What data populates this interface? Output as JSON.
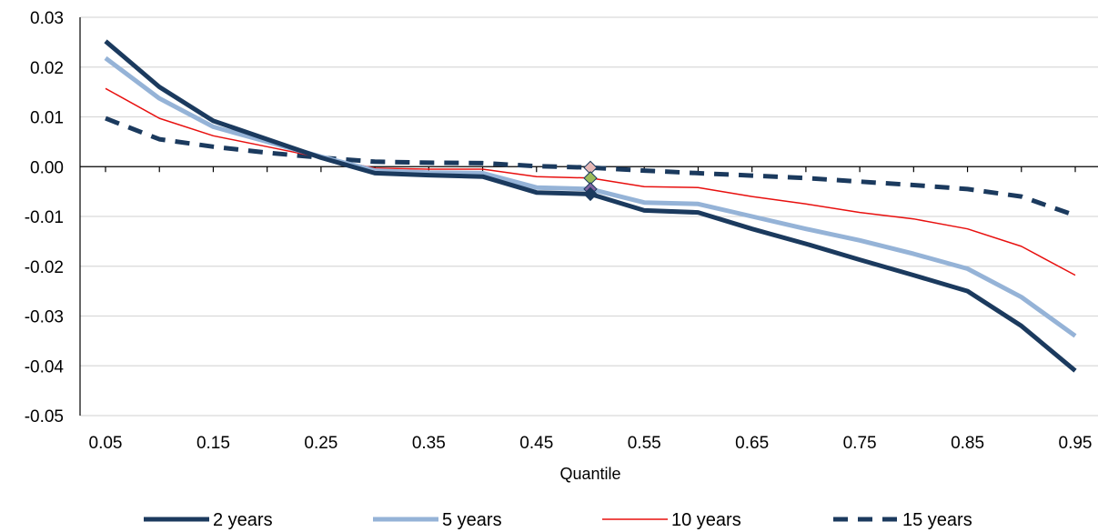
{
  "chart_data": {
    "type": "line",
    "title": "",
    "xlabel": "Quantile",
    "ylabel": "",
    "x": [
      0.05,
      0.1,
      0.15,
      0.2,
      0.25,
      0.3,
      0.35,
      0.4,
      0.45,
      0.5,
      0.55,
      0.6,
      0.65,
      0.7,
      0.75,
      0.8,
      0.85,
      0.9,
      0.95
    ],
    "xlim": [
      0.05,
      0.95
    ],
    "ylim": [
      -0.05,
      0.03
    ],
    "x_ticks": [
      "0.05",
      "0.15",
      "0.25",
      "0.35",
      "0.45",
      "0.55",
      "0.65",
      "0.75",
      "0.85",
      "0.95"
    ],
    "y_ticks": [
      "0.03",
      "0.02",
      "0.01",
      "0.00",
      "-0.01",
      "-0.02",
      "-0.03",
      "-0.04",
      "-0.05"
    ],
    "grid": "horizontal",
    "legend_position": "bottom",
    "series": [
      {
        "name": "2 years",
        "color": "#1b3a5e",
        "style": "solid-thick",
        "values": [
          0.0252,
          0.016,
          0.0092,
          0.0055,
          0.0018,
          -0.0013,
          -0.0017,
          -0.002,
          -0.0052,
          -0.0055,
          -0.0088,
          -0.0092,
          -0.0125,
          -0.0155,
          -0.0187,
          -0.0218,
          -0.025,
          -0.032,
          -0.041
        ]
      },
      {
        "name": "5 years",
        "color": "#95b3d7",
        "style": "solid-thick",
        "values": [
          0.0218,
          0.0137,
          0.008,
          0.005,
          0.002,
          -0.0008,
          -0.0012,
          -0.0013,
          -0.0042,
          -0.0045,
          -0.0072,
          -0.0075,
          -0.01,
          -0.0125,
          -0.0148,
          -0.0175,
          -0.0205,
          -0.0262,
          -0.034
        ]
      },
      {
        "name": "10 years",
        "color": "#e8100f",
        "style": "solid-thin",
        "values": [
          0.0157,
          0.0097,
          0.0062,
          0.004,
          0.0018,
          -0.0003,
          -0.0005,
          -0.0005,
          -0.002,
          -0.0023,
          -0.004,
          -0.0042,
          -0.006,
          -0.0075,
          -0.0092,
          -0.0105,
          -0.0125,
          -0.016,
          -0.0218
        ]
      },
      {
        "name": "15 years",
        "color": "#1b3a5e",
        "style": "dashed-thick",
        "values": [
          0.0097,
          0.0055,
          0.004,
          0.0028,
          0.0018,
          0.001,
          0.0008,
          0.0007,
          0.0001,
          -0.0002,
          -0.0008,
          -0.0013,
          -0.0018,
          -0.0023,
          -0.003,
          -0.0037,
          -0.0045,
          -0.006,
          -0.0098
        ]
      }
    ],
    "markers": [
      {
        "x": 0.5,
        "y": -0.0002,
        "color": "#e6b8b7"
      },
      {
        "x": 0.5,
        "y": -0.0023,
        "color": "#9bbb59"
      },
      {
        "x": 0.5,
        "y": -0.0045,
        "color": "#8064a2"
      },
      {
        "x": 0.5,
        "y": -0.0055,
        "color": "#1b3a5e"
      }
    ]
  }
}
